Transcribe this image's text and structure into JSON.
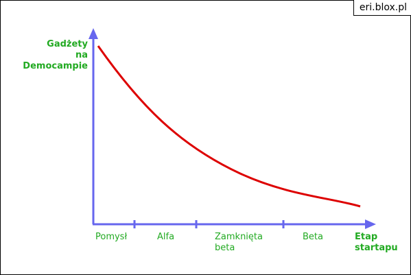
{
  "site_label": "eri.blox.pl",
  "colors": {
    "axis": "#6666ee",
    "curve": "#dd0000",
    "text": "#22aa22",
    "border": "#000000"
  },
  "chart_data": {
    "type": "line",
    "ylabel": [
      "Gadżety",
      "na",
      "Democampie"
    ],
    "xlabel": [
      "Etap",
      "startapu"
    ],
    "categories": [
      "Pomysł",
      "Alfa",
      "Zamknięta\nbeta",
      "Beta"
    ],
    "x_ticks": [
      "Pomysł",
      "Alfa",
      "Zamknięta beta",
      "Beta"
    ],
    "grid": false,
    "series": [
      {
        "values": [
          100,
          55,
          19,
          6
        ]
      }
    ]
  }
}
